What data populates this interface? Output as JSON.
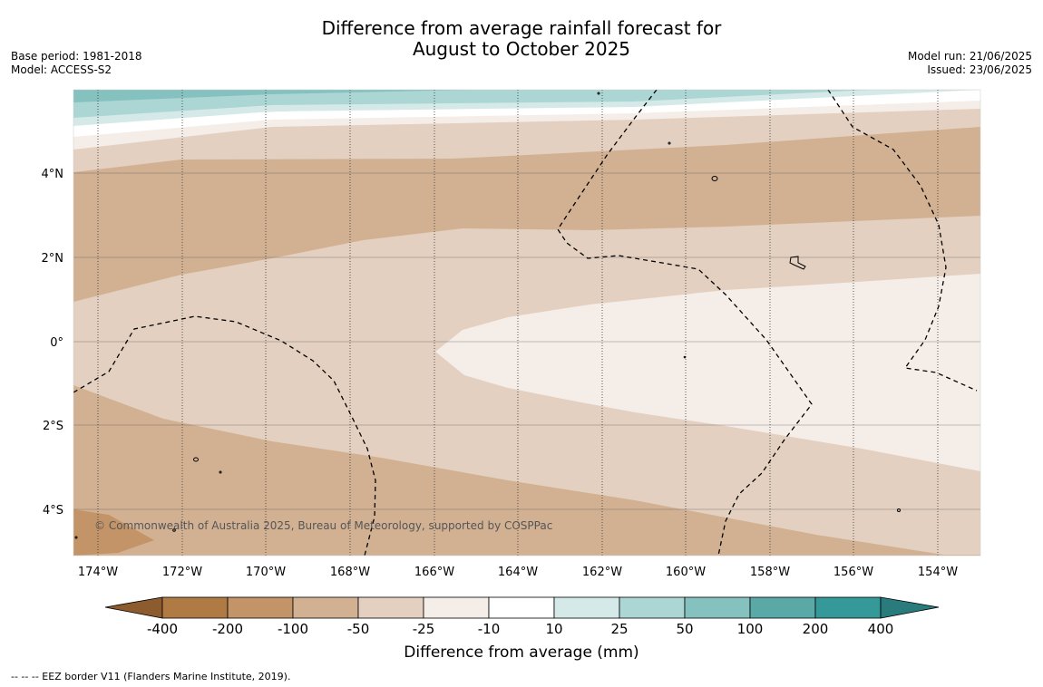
{
  "header": {
    "title_line1": "Difference from average rainfall forecast for",
    "title_line2": "August to October 2025",
    "base_period": "Base period: 1981-2018",
    "model": "Model: ACCESS-S2",
    "model_run": "Model run: 21/06/2025",
    "issued": "Issued: 23/06/2025"
  },
  "map": {
    "copyright": "© Commonwealth of Australia 2025, Bureau of Meteorology, supported by COSPPac",
    "lat_ticks": [
      "4°N",
      "2°N",
      "0°",
      "2°S",
      "4°S"
    ],
    "lon_ticks": [
      "174°W",
      "172°W",
      "170°W",
      "168°W",
      "166°W",
      "164°W",
      "162°W",
      "160°W",
      "158°W",
      "156°W",
      "154°W"
    ],
    "eez_line_style": "dashed"
  },
  "colorbar": {
    "title": "Difference from average (mm)",
    "tick_labels": [
      "-400",
      "-200",
      "-100",
      "-50",
      "-25",
      "-10",
      "10",
      "25",
      "50",
      "100",
      "200",
      "400"
    ],
    "colors": {
      "lt_-400": "#8c5b2e",
      "-400_-200": "#b07a45",
      "-200_-100": "#c39468",
      "-100_-50": "#d2b193",
      "-50_-25": "#e3d0c0",
      "-25_-10": "#f5ede8",
      "-10_10": "#ffffff",
      "10_25": "#d5eae8",
      "25_50": "#acd6d4",
      "50_100": "#85c1bf",
      "100_200": "#5ba9a7",
      "200_400": "#35999a",
      "gt_400": "#2a7c7c"
    }
  },
  "footer": {
    "eez_legend": "--  --  -- EEZ border V11 (Flanders Marine Institute, 2019)."
  }
}
